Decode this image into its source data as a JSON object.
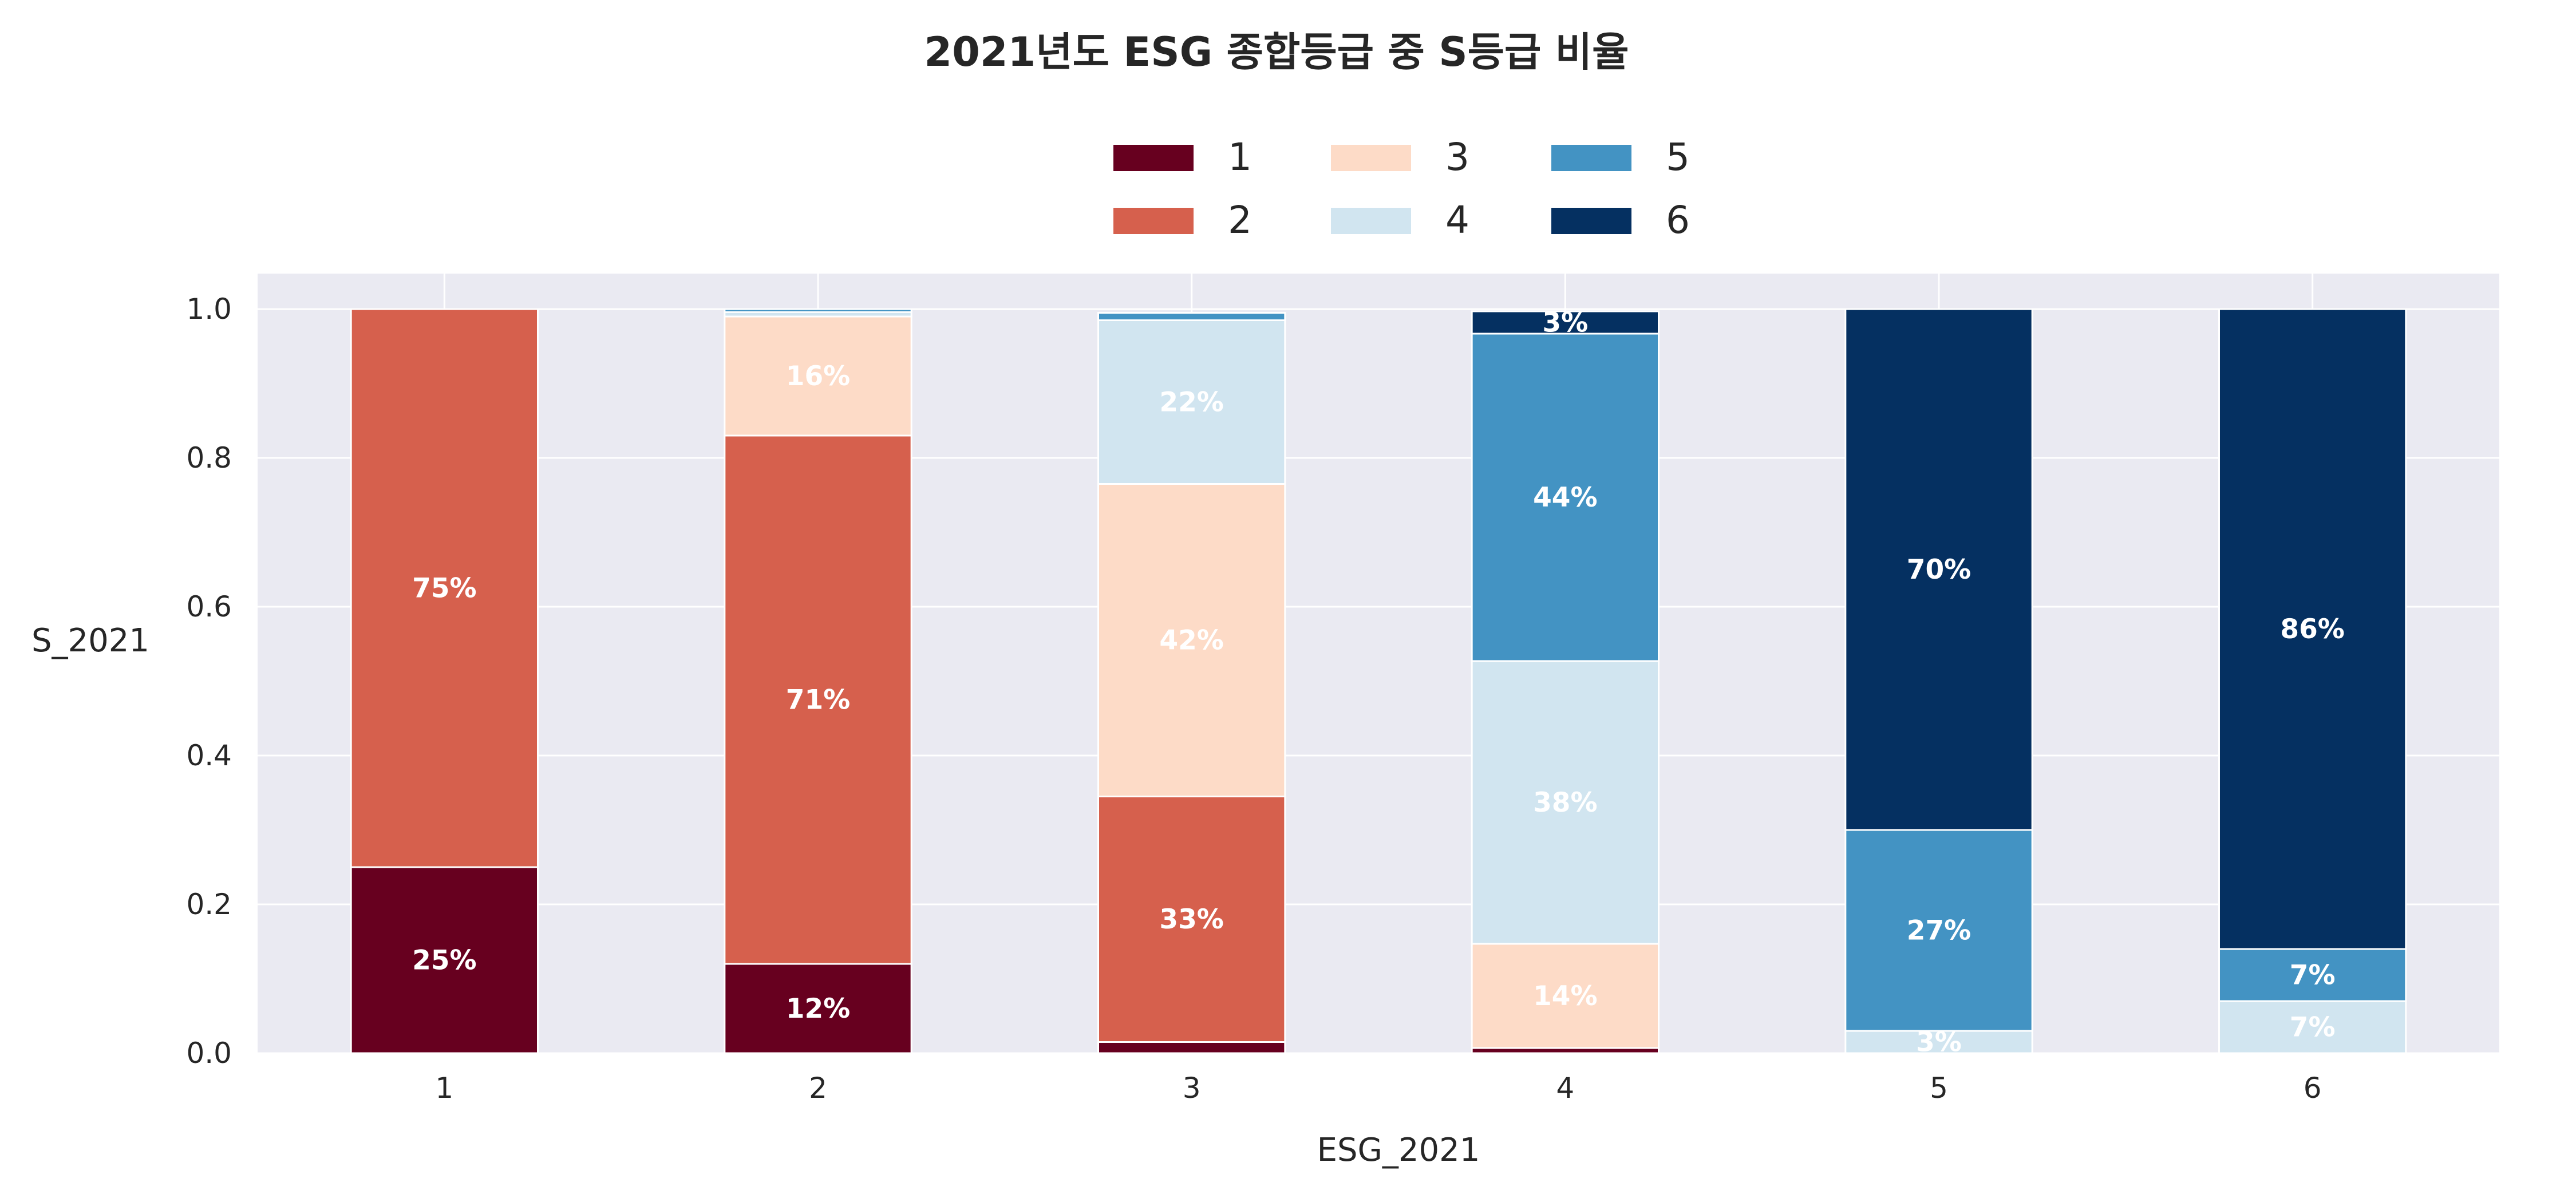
{
  "chart_data": {
    "type": "bar",
    "stacked": true,
    "normalized": true,
    "title": "2021년도 ESG 종합등급 중 S등급 비율",
    "xlabel": "ESG_2021",
    "ylabel": "S_2021",
    "categories": [
      "1",
      "2",
      "3",
      "4",
      "5",
      "6"
    ],
    "ylim": [
      0,
      1.05
    ],
    "yticks": [
      "0.0",
      "0.2",
      "0.4",
      "0.6",
      "0.8",
      "1.0"
    ],
    "legend_title": "",
    "legend_position": "top-center",
    "grid": true,
    "series": [
      {
        "name": "1",
        "color": "#67001f",
        "values": [
          0.25,
          0.12,
          0.015,
          0.007,
          0.0,
          0.0
        ],
        "labels": [
          "25%",
          "12%",
          "",
          "",
          "",
          ""
        ]
      },
      {
        "name": "2",
        "color": "#d6604d",
        "values": [
          0.75,
          0.71,
          0.33,
          0.0,
          0.0,
          0.0
        ],
        "labels": [
          "75%",
          "71%",
          "33%",
          "",
          "",
          ""
        ]
      },
      {
        "name": "3",
        "color": "#fddbc7",
        "values": [
          0.0,
          0.16,
          0.42,
          0.14,
          0.0,
          0.0
        ],
        "labels": [
          "",
          "16%",
          "42%",
          "14%",
          "",
          ""
        ]
      },
      {
        "name": "4",
        "color": "#d1e5f0",
        "values": [
          0.0,
          0.006,
          0.22,
          0.38,
          0.03,
          0.07
        ],
        "labels": [
          "",
          "",
          "22%",
          "38%",
          "3%",
          "7%"
        ]
      },
      {
        "name": "5",
        "color": "#4393c3",
        "values": [
          0.0,
          0.004,
          0.01,
          0.44,
          0.27,
          0.07
        ],
        "labels": [
          "",
          "",
          "",
          "44%",
          "27%",
          "7%"
        ]
      },
      {
        "name": "6",
        "color": "#053061",
        "values": [
          0.0,
          0.0,
          0.0,
          0.03,
          0.7,
          0.86
        ],
        "labels": [
          "",
          "",
          "",
          "3%",
          "70%",
          "86%"
        ]
      }
    ]
  },
  "style": {
    "plot_background": "#eaeaf2",
    "grid_color": "#ffffff",
    "bar_edge_color": "#ffffff"
  }
}
